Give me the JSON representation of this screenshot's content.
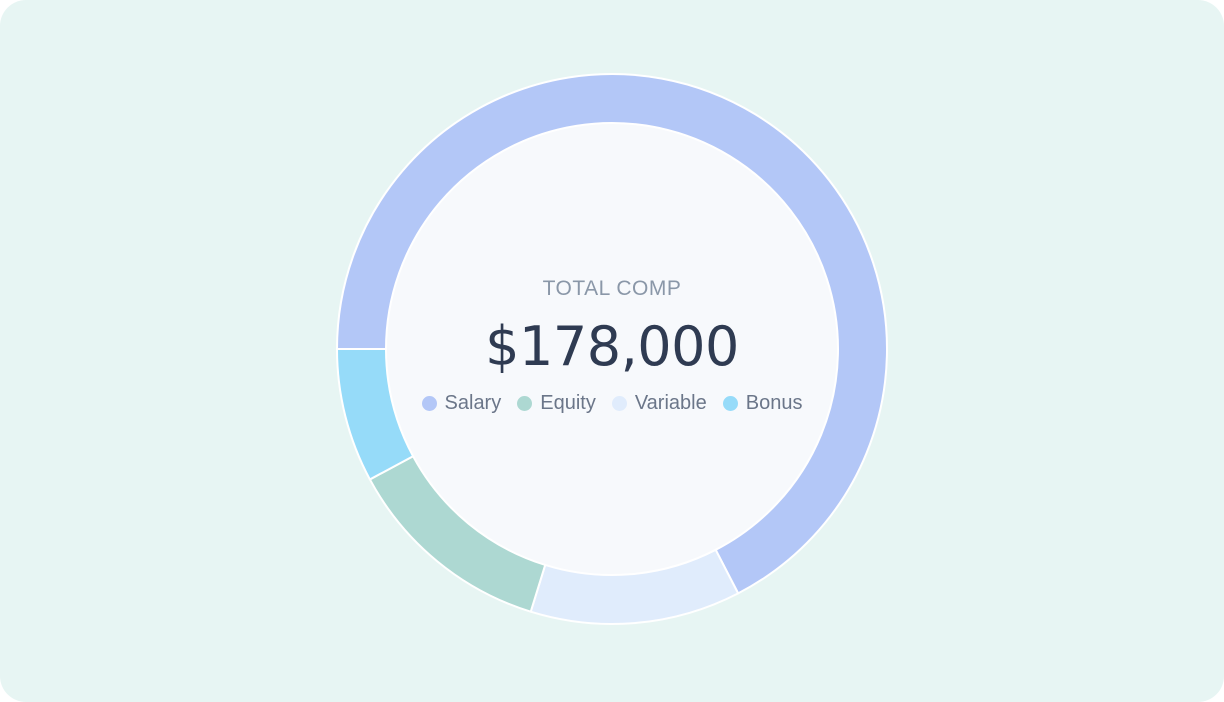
{
  "chart_data": {
    "type": "pie",
    "variant": "donut",
    "title": "",
    "center": {
      "label": "TOTAL COMP",
      "value": "$178,000"
    },
    "total": 178000,
    "legend_position": "center",
    "legend": [
      {
        "name": "Salary",
        "color": "#b3c7f7"
      },
      {
        "name": "Equity",
        "color": "#add8d2"
      },
      {
        "name": "Variable",
        "color": "#e0ecfc"
      },
      {
        "name": "Bonus",
        "color": "#96dbf9"
      }
    ],
    "slices": [
      {
        "name": "Salary",
        "value": 120000,
        "color": "#b3c7f7",
        "start_value": 0
      },
      {
        "name": "Variable",
        "value": 22000,
        "color": "#e0ecfc",
        "start_value": 120000
      },
      {
        "name": "Equity",
        "value": 22000,
        "color": "#add8d2",
        "start_value": 142000
      },
      {
        "name": "Bonus",
        "value": 14000,
        "color": "#96dbf9",
        "start_value": 164000
      }
    ],
    "start_angle_deg": 180
  }
}
